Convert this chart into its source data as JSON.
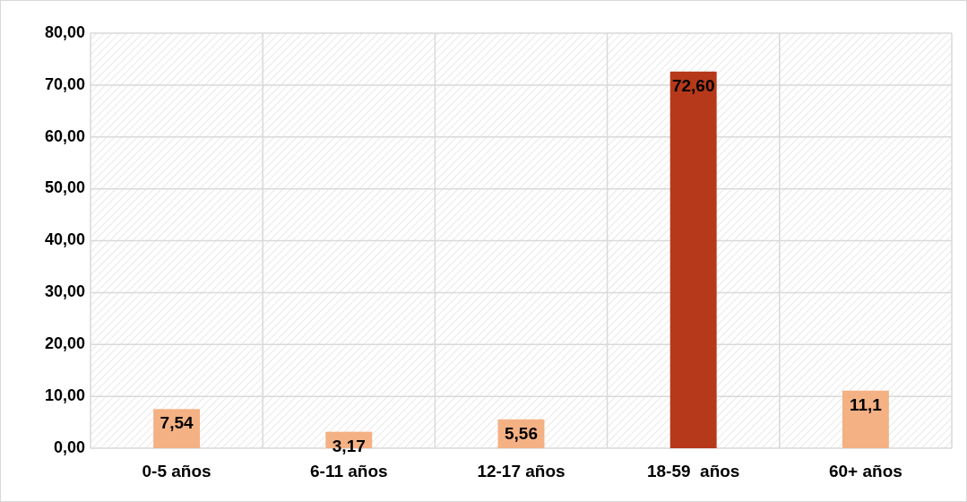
{
  "chart_data": {
    "type": "bar",
    "categories": [
      "0-5 años",
      "6-11 años",
      "12-17 años",
      "18-59  años",
      "60+ años"
    ],
    "values": [
      7.54,
      3.17,
      5.56,
      72.6,
      11.1
    ],
    "colors": [
      "#f4b183",
      "#f4b183",
      "#f4b183",
      "#b5391a",
      "#f4b183"
    ],
    "value_labels": [
      "7,54",
      "3,17",
      "5,56",
      "72,60",
      "11,1"
    ],
    "ylim": [
      0,
      80
    ],
    "yticks": [
      {
        "value": 0,
        "label": "0,00"
      },
      {
        "value": 10,
        "label": "10,00"
      },
      {
        "value": 20,
        "label": "20,00"
      },
      {
        "value": 30,
        "label": "30,00"
      },
      {
        "value": 40,
        "label": "40,00"
      },
      {
        "value": 50,
        "label": "50,00"
      },
      {
        "value": 60,
        "label": "60,00"
      },
      {
        "value": 70,
        "label": "70,00"
      },
      {
        "value": 80,
        "label": "80,00"
      }
    ],
    "grid": true
  }
}
